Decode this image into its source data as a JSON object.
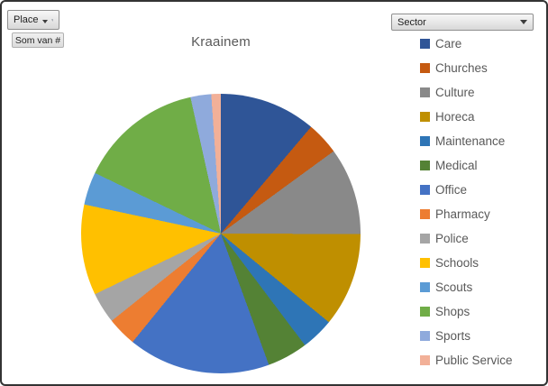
{
  "window": {
    "background": "#ffffff",
    "border_color": "#333333"
  },
  "filters": {
    "place_button": {
      "label": "Place",
      "icon": "filter-funnel"
    },
    "value_button": {
      "label": "Som van #"
    },
    "sector_dropdown": {
      "label": "Sector"
    }
  },
  "chart_data": {
    "type": "pie",
    "title": "Kraainem",
    "legend_position": "right",
    "start_angle_deg": 0,
    "categories": [
      "Care",
      "Churches",
      "Culture",
      "Horeca",
      "Maintenance",
      "Medical",
      "Office",
      "Pharmacy",
      "Police",
      "Schools",
      "Scouts",
      "Shops",
      "Sports",
      "Public Service"
    ],
    "values_pct": [
      11.2,
      3.8,
      10.1,
      10.9,
      3.8,
      4.7,
      16.5,
      3.4,
      3.6,
      10.5,
      3.8,
      14.4,
      2.4,
      1.1
    ],
    "colors": [
      "#2F5597",
      "#C55A11",
      "#898989",
      "#BF8F00",
      "#2E75B6",
      "#548235",
      "#4472C4",
      "#ED7D31",
      "#A5A5A5",
      "#FFC000",
      "#5B9BD5",
      "#70AD47",
      "#8FAADC",
      "#F2B098"
    ]
  }
}
